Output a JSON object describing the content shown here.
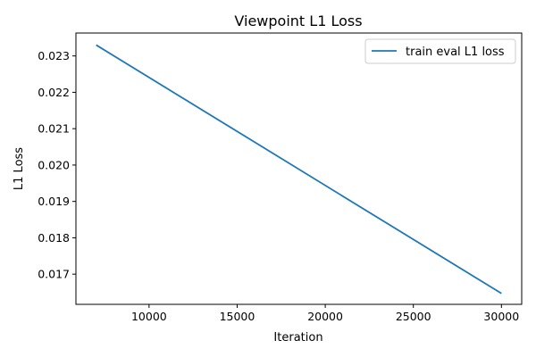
{
  "chart_data": {
    "type": "line",
    "title": "Viewpoint L1 Loss",
    "xlabel": "Iteration",
    "ylabel": "L1 Loss",
    "xlim": [
      5850,
      31150
    ],
    "ylim": [
      0.01617,
      0.02363
    ],
    "x_ticks": [
      10000,
      15000,
      20000,
      25000,
      30000
    ],
    "x_tick_labels": [
      "10000",
      "15000",
      "20000",
      "25000",
      "30000"
    ],
    "y_ticks": [
      0.017,
      0.018,
      0.019,
      0.02,
      0.021,
      0.022,
      0.023
    ],
    "y_tick_labels": [
      "0.017",
      "0.018",
      "0.019",
      "0.020",
      "0.021",
      "0.022",
      "0.023"
    ],
    "grid": false,
    "legend_position": "top-right",
    "series": [
      {
        "name": "train eval L1 loss",
        "color": "#1f77b4",
        "x": [
          7000,
          30000
        ],
        "y": [
          0.0233,
          0.01647
        ]
      }
    ]
  }
}
